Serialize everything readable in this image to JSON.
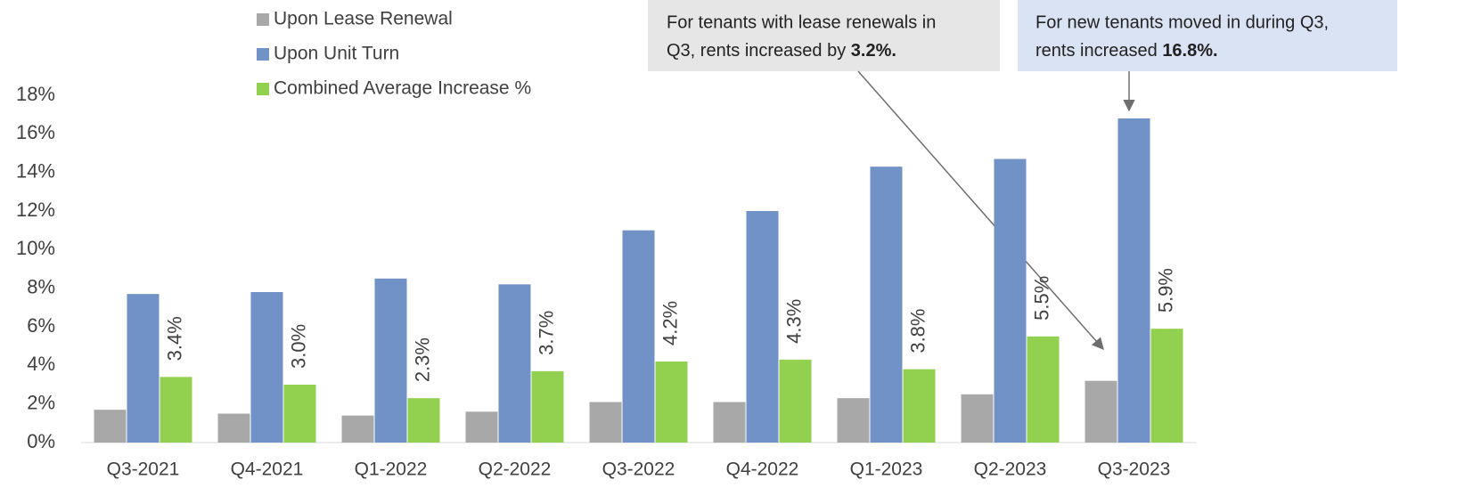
{
  "chart_data": {
    "type": "bar",
    "categories": [
      "Q3-2021",
      "Q4-2021",
      "Q1-2022",
      "Q2-2022",
      "Q3-2022",
      "Q4-2022",
      "Q1-2023",
      "Q2-2023",
      "Q3-2023"
    ],
    "series": [
      {
        "name": "Upon Lease Renewal",
        "color": "#a9a8a8",
        "values": [
          1.7,
          1.5,
          1.4,
          1.6,
          2.1,
          2.1,
          2.3,
          2.5,
          3.2
        ]
      },
      {
        "name": "Upon Unit Turn",
        "color": "#7092c7",
        "values": [
          7.7,
          7.8,
          8.5,
          8.2,
          11.0,
          12.0,
          14.3,
          14.7,
          16.8
        ]
      },
      {
        "name": "Combined Average Increase %",
        "color": "#92d050",
        "values": [
          3.4,
          3.0,
          2.3,
          3.7,
          4.2,
          4.3,
          3.8,
          5.5,
          5.9
        ],
        "value_labels": [
          "3.4%",
          "3.0%",
          "2.3%",
          "3.7%",
          "4.2%",
          "4.3%",
          "3.8%",
          "5.5%",
          "5.9%"
        ]
      }
    ],
    "ylim": [
      0,
      18
    ],
    "yticks": [
      {
        "value": 0,
        "label": "0%"
      },
      {
        "value": 2,
        "label": "2%"
      },
      {
        "value": 4,
        "label": "4%"
      },
      {
        "value": 6,
        "label": "6%"
      },
      {
        "value": 8,
        "label": "8%"
      },
      {
        "value": 10,
        "label": "10%"
      },
      {
        "value": 12,
        "label": "12%"
      },
      {
        "value": 14,
        "label": "14%"
      },
      {
        "value": 16,
        "label": "16%"
      },
      {
        "value": 18,
        "label": "18%"
      }
    ],
    "grid": false,
    "legend": "top-left",
    "annotations": [
      {
        "lines": [
          "For tenants with lease renewals in",
          "Q3, rents increased by"
        ],
        "emphasis": "3.2%."
      },
      {
        "lines": [
          "For new tenants moved in during Q3,",
          "rents increased"
        ],
        "emphasis": "16.8%."
      }
    ]
  }
}
